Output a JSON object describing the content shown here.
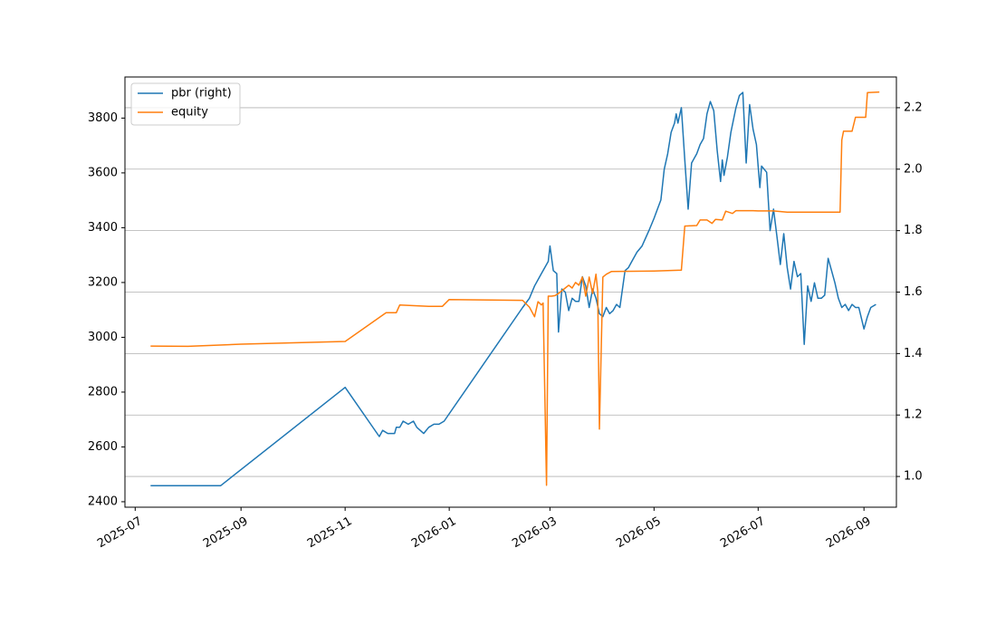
{
  "chart_data": {
    "type": "line",
    "title": "",
    "xlabel": "",
    "ylabel": "",
    "x_range": [
      "2025-06-25",
      "2026-09-20"
    ],
    "y_left_range": [
      2380,
      3950
    ],
    "y_right_range": [
      0.9,
      2.3
    ],
    "x_ticks": [
      "2025-07",
      "2025-09",
      "2025-11",
      "2026-01",
      "2026-03",
      "2026-05",
      "2026-07",
      "2026-09"
    ],
    "y_left_ticks": [
      2400,
      2600,
      2800,
      3000,
      3200,
      3400,
      3600,
      3800
    ],
    "y_right_ticks": [
      "1.0",
      "1.2",
      "1.4",
      "1.6",
      "1.8",
      "2.0",
      "2.2"
    ],
    "grid": "right y-axis horizontal gridlines",
    "legend_position": "top-left",
    "series": [
      {
        "name": "pbr (right)",
        "axis": "right",
        "color": "#1f77b4",
        "points": [
          [
            "2025-07-10",
            0.97
          ],
          [
            "2025-08-20",
            0.97
          ],
          [
            "2025-11-01",
            1.29
          ],
          [
            "2025-11-21",
            1.13
          ],
          [
            "2025-11-23",
            1.15
          ],
          [
            "2025-11-26",
            1.14
          ],
          [
            "2025-11-30",
            1.14
          ],
          [
            "2025-12-01",
            1.16
          ],
          [
            "2025-12-03",
            1.16
          ],
          [
            "2025-12-05",
            1.18
          ],
          [
            "2025-12-08",
            1.17
          ],
          [
            "2025-12-11",
            1.18
          ],
          [
            "2025-12-13",
            1.16
          ],
          [
            "2025-12-15",
            1.15
          ],
          [
            "2025-12-17",
            1.14
          ],
          [
            "2025-12-20",
            1.16
          ],
          [
            "2025-12-23",
            1.17
          ],
          [
            "2025-12-26",
            1.17
          ],
          [
            "2025-12-29",
            1.18
          ],
          [
            "2026-02-13",
            1.55
          ],
          [
            "2026-02-17",
            1.58
          ],
          [
            "2026-02-20",
            1.62
          ],
          [
            "2026-02-24",
            1.66
          ],
          [
            "2026-02-26",
            1.68
          ],
          [
            "2026-02-28",
            1.7
          ],
          [
            "2026-03-01",
            1.75
          ],
          [
            "2026-03-03",
            1.67
          ],
          [
            "2026-03-05",
            1.66
          ],
          [
            "2026-03-06",
            1.47
          ],
          [
            "2026-03-08",
            1.61
          ],
          [
            "2026-03-10",
            1.6
          ],
          [
            "2026-03-12",
            1.54
          ],
          [
            "2026-03-14",
            1.58
          ],
          [
            "2026-03-16",
            1.57
          ],
          [
            "2026-03-18",
            1.57
          ],
          [
            "2026-03-20",
            1.65
          ],
          [
            "2026-03-22",
            1.62
          ],
          [
            "2026-03-24",
            1.55
          ],
          [
            "2026-03-26",
            1.61
          ],
          [
            "2026-03-28",
            1.58
          ],
          [
            "2026-03-30",
            1.53
          ],
          [
            "2026-04-01",
            1.52
          ],
          [
            "2026-04-03",
            1.55
          ],
          [
            "2026-04-05",
            1.53
          ],
          [
            "2026-04-07",
            1.54
          ],
          [
            "2026-04-09",
            1.56
          ],
          [
            "2026-04-11",
            1.55
          ],
          [
            "2026-04-14",
            1.67
          ],
          [
            "2026-04-16",
            1.68
          ],
          [
            "2026-04-18",
            1.7
          ],
          [
            "2026-04-21",
            1.73
          ],
          [
            "2026-04-24",
            1.75
          ],
          [
            "2026-04-28",
            1.8
          ],
          [
            "2026-05-01",
            1.84
          ],
          [
            "2026-05-03",
            1.87
          ],
          [
            "2026-05-05",
            1.9
          ],
          [
            "2026-05-07",
            2.0
          ],
          [
            "2026-05-09",
            2.05
          ],
          [
            "2026-05-11",
            2.12
          ],
          [
            "2026-05-13",
            2.15
          ],
          [
            "2026-05-14",
            2.18
          ],
          [
            "2026-05-15",
            2.15
          ],
          [
            "2026-05-17",
            2.2
          ],
          [
            "2026-05-19",
            2.03
          ],
          [
            "2026-05-21",
            1.87
          ],
          [
            "2026-05-23",
            2.02
          ],
          [
            "2026-05-26",
            2.05
          ],
          [
            "2026-05-28",
            2.08
          ],
          [
            "2026-05-30",
            2.1
          ],
          [
            "2026-06-01",
            2.18
          ],
          [
            "2026-06-03",
            2.22
          ],
          [
            "2026-06-05",
            2.19
          ],
          [
            "2026-06-07",
            2.06
          ],
          [
            "2026-06-09",
            1.96
          ],
          [
            "2026-06-10",
            2.03
          ],
          [
            "2026-06-11",
            1.98
          ],
          [
            "2026-06-13",
            2.04
          ],
          [
            "2026-06-15",
            2.12
          ],
          [
            "2026-06-18",
            2.2
          ],
          [
            "2026-06-20",
            2.24
          ],
          [
            "2026-06-22",
            2.25
          ],
          [
            "2026-06-24",
            2.02
          ],
          [
            "2026-06-26",
            2.21
          ],
          [
            "2026-06-28",
            2.13
          ],
          [
            "2026-06-30",
            2.08
          ],
          [
            "2026-07-02",
            1.94
          ],
          [
            "2026-07-03",
            2.01
          ],
          [
            "2026-07-06",
            1.99
          ],
          [
            "2026-07-08",
            1.8
          ],
          [
            "2026-07-10",
            1.87
          ],
          [
            "2026-07-12",
            1.78
          ],
          [
            "2026-07-14",
            1.69
          ],
          [
            "2026-07-16",
            1.79
          ],
          [
            "2026-07-18",
            1.68
          ],
          [
            "2026-07-20",
            1.61
          ],
          [
            "2026-07-22",
            1.7
          ],
          [
            "2026-07-24",
            1.65
          ],
          [
            "2026-07-26",
            1.66
          ],
          [
            "2026-07-28",
            1.43
          ],
          [
            "2026-07-30",
            1.62
          ],
          [
            "2026-08-01",
            1.57
          ],
          [
            "2026-08-03",
            1.63
          ],
          [
            "2026-08-05",
            1.58
          ],
          [
            "2026-08-07",
            1.58
          ],
          [
            "2026-08-09",
            1.59
          ],
          [
            "2026-08-11",
            1.71
          ],
          [
            "2026-08-13",
            1.67
          ],
          [
            "2026-08-15",
            1.63
          ],
          [
            "2026-08-17",
            1.58
          ],
          [
            "2026-08-19",
            1.55
          ],
          [
            "2026-08-21",
            1.56
          ],
          [
            "2026-08-23",
            1.54
          ],
          [
            "2026-08-25",
            1.56
          ],
          [
            "2026-08-27",
            1.55
          ],
          [
            "2026-08-29",
            1.55
          ],
          [
            "2026-09-01",
            1.48
          ],
          [
            "2026-09-03",
            1.52
          ],
          [
            "2026-09-05",
            1.55
          ],
          [
            "2026-09-08",
            1.56
          ]
        ]
      },
      {
        "name": "equity",
        "axis": "left",
        "color": "#ff7f0e",
        "points": [
          [
            "2025-07-10",
            2968
          ],
          [
            "2025-08-01",
            2967
          ],
          [
            "2025-09-01",
            2975
          ],
          [
            "2025-11-01",
            2985
          ],
          [
            "2025-11-25",
            3090
          ],
          [
            "2025-12-01",
            3090
          ],
          [
            "2025-12-03",
            3118
          ],
          [
            "2025-12-20",
            3113
          ],
          [
            "2025-12-28",
            3113
          ],
          [
            "2026-01-01",
            3138
          ],
          [
            "2026-02-13",
            3135
          ],
          [
            "2026-02-17",
            3110
          ],
          [
            "2026-02-20",
            3075
          ],
          [
            "2026-02-22",
            3130
          ],
          [
            "2026-02-24",
            3118
          ],
          [
            "2026-02-25",
            3125
          ],
          [
            "2026-02-27",
            2460
          ],
          [
            "2026-02-28",
            3150
          ],
          [
            "2026-03-02",
            3150
          ],
          [
            "2026-03-04",
            3152
          ],
          [
            "2026-03-06",
            3160
          ],
          [
            "2026-03-08",
            3170
          ],
          [
            "2026-03-10",
            3180
          ],
          [
            "2026-03-12",
            3190
          ],
          [
            "2026-03-14",
            3180
          ],
          [
            "2026-03-16",
            3200
          ],
          [
            "2026-03-18",
            3190
          ],
          [
            "2026-03-20",
            3220
          ],
          [
            "2026-03-22",
            3150
          ],
          [
            "2026-03-24",
            3220
          ],
          [
            "2026-03-26",
            3160
          ],
          [
            "2026-03-28",
            3230
          ],
          [
            "2026-03-29",
            3170
          ],
          [
            "2026-03-30",
            2665
          ],
          [
            "2026-04-01",
            3220
          ],
          [
            "2026-04-03",
            3230
          ],
          [
            "2026-04-06",
            3240
          ],
          [
            "2026-05-01",
            3242
          ],
          [
            "2026-05-17",
            3245
          ],
          [
            "2026-05-19",
            3406
          ],
          [
            "2026-05-26",
            3408
          ],
          [
            "2026-05-28",
            3428
          ],
          [
            "2026-06-01",
            3428
          ],
          [
            "2026-06-04",
            3416
          ],
          [
            "2026-06-06",
            3430
          ],
          [
            "2026-06-10",
            3428
          ],
          [
            "2026-06-12",
            3460
          ],
          [
            "2026-06-16",
            3452
          ],
          [
            "2026-06-18",
            3462
          ],
          [
            "2026-06-28",
            3462
          ],
          [
            "2026-07-01",
            3461
          ],
          [
            "2026-07-10",
            3461
          ],
          [
            "2026-07-18",
            3457
          ],
          [
            "2026-08-18",
            3457
          ],
          [
            "2026-08-19",
            3720
          ],
          [
            "2026-08-20",
            3752
          ],
          [
            "2026-08-25",
            3752
          ],
          [
            "2026-08-27",
            3803
          ],
          [
            "2026-09-02",
            3803
          ],
          [
            "2026-09-03",
            3893
          ],
          [
            "2026-09-10",
            3895
          ]
        ]
      }
    ]
  }
}
